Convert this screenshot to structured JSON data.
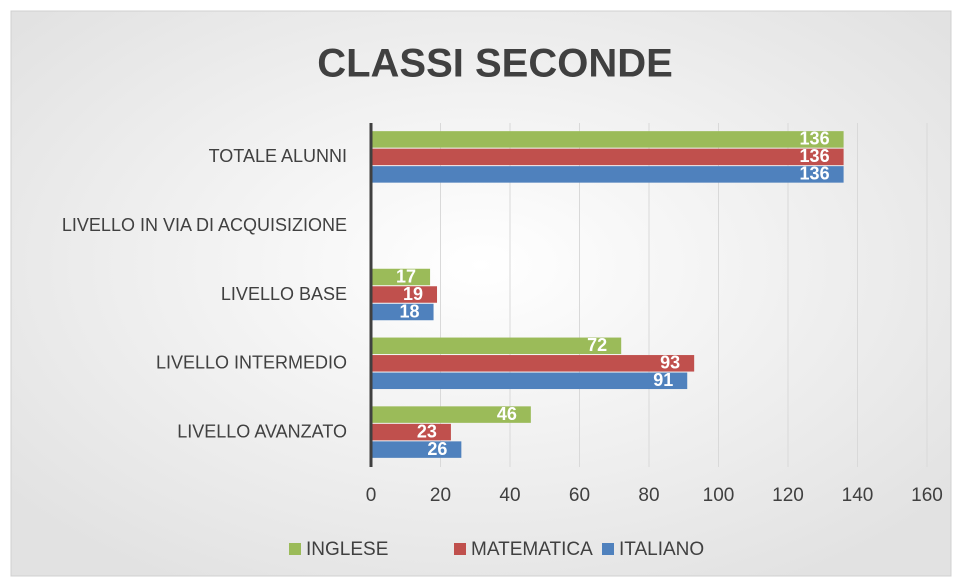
{
  "chart_data": {
    "type": "bar",
    "orientation": "horizontal",
    "title": "CLASSI SECONDE",
    "categories": [
      "TOTALE ALUNNI",
      "LIVELLO IN VIA DI ACQUISIZIONE",
      "LIVELLO BASE",
      "LIVELLO INTERMEDIO",
      "LIVELLO AVANZATO"
    ],
    "series": [
      {
        "name": "INGLESE",
        "color": "#9bbb59",
        "values": [
          136,
          0,
          17,
          72,
          46
        ]
      },
      {
        "name": "MATEMATICA",
        "color": "#c0504d",
        "values": [
          136,
          0,
          19,
          93,
          23
        ]
      },
      {
        "name": "ITALIANO",
        "color": "#4f81bd",
        "values": [
          136,
          0,
          18,
          91,
          26
        ]
      }
    ],
    "xlim": [
      0,
      160
    ],
    "xticks": [
      0,
      20,
      40,
      60,
      80,
      100,
      120,
      140,
      160
    ],
    "grid": true,
    "legend": "bottom"
  }
}
